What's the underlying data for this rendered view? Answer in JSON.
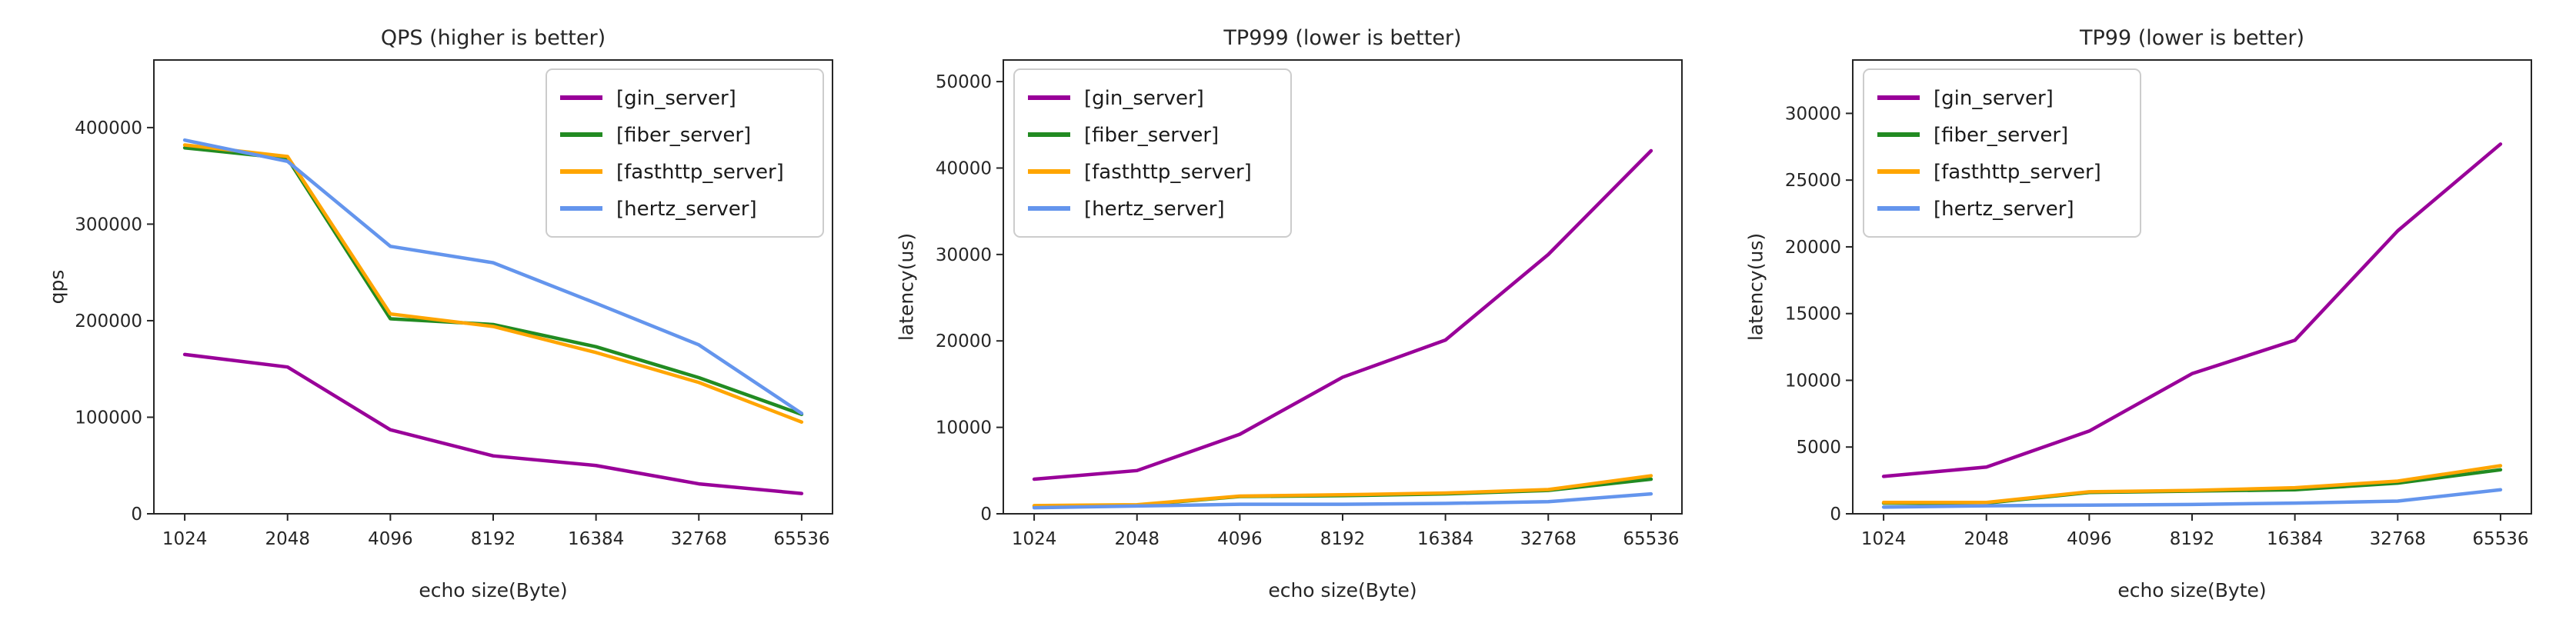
{
  "figure": {
    "background": "#ffffff",
    "axis_color": "#262626",
    "legend_border_color": "#cccccc",
    "legend_background": "#ffffff"
  },
  "chart_data": [
    {
      "type": "line",
      "title": "QPS (higher is better)",
      "xlabel": "echo size(Byte)",
      "ylabel": "qps",
      "categories": [
        "1024",
        "2048",
        "4096",
        "8192",
        "16384",
        "32768",
        "65536"
      ],
      "ylim": [
        0,
        470000
      ],
      "yticks": [
        0,
        100000,
        200000,
        300000,
        400000
      ],
      "grid": false,
      "legend_position": "upper-right",
      "series": [
        {
          "key": "gin_server",
          "name": "[gin_server]",
          "color": "#990099",
          "values": [
            165000,
            152000,
            87000,
            60000,
            50000,
            31000,
            21000
          ]
        },
        {
          "key": "fiber_server",
          "name": "[fiber_server]",
          "color": "#228B22",
          "values": [
            379000,
            368000,
            202000,
            196000,
            173000,
            141000,
            103000
          ]
        },
        {
          "key": "fasthttp_server",
          "name": "[fasthttp_server]",
          "color": "#FFA500",
          "values": [
            382000,
            370000,
            207000,
            194000,
            167000,
            136000,
            95000
          ]
        },
        {
          "key": "hertz_server",
          "name": "[hertz_server]",
          "color": "#6495ED",
          "values": [
            387000,
            365000,
            277000,
            260000,
            218000,
            175000,
            104000
          ]
        }
      ]
    },
    {
      "type": "line",
      "title": "TP999 (lower is better)",
      "xlabel": "echo size(Byte)",
      "ylabel": "latency(us)",
      "categories": [
        "1024",
        "2048",
        "4096",
        "8192",
        "16384",
        "32768",
        "65536"
      ],
      "ylim": [
        0,
        52500
      ],
      "yticks": [
        0,
        10000,
        20000,
        30000,
        40000,
        50000
      ],
      "grid": false,
      "legend_position": "upper-left",
      "series": [
        {
          "key": "gin_server",
          "name": "[gin_server]",
          "color": "#990099",
          "values": [
            4000,
            5000,
            9200,
            15800,
            20100,
            30000,
            42000
          ]
        },
        {
          "key": "fiber_server",
          "name": "[fiber_server]",
          "color": "#228B22",
          "values": [
            900,
            1000,
            2000,
            2100,
            2300,
            2700,
            4000
          ]
        },
        {
          "key": "fasthttp_server",
          "name": "[fasthttp_server]",
          "color": "#FFA500",
          "values": [
            950,
            1050,
            2050,
            2200,
            2400,
            2800,
            4400
          ]
        },
        {
          "key": "hertz_server",
          "name": "[hertz_server]",
          "color": "#6495ED",
          "values": [
            700,
            900,
            1100,
            1100,
            1200,
            1400,
            2300
          ]
        }
      ]
    },
    {
      "type": "line",
      "title": "TP99 (lower is better)",
      "xlabel": "echo size(Byte)",
      "ylabel": "latency(us)",
      "categories": [
        "1024",
        "2048",
        "4096",
        "8192",
        "16384",
        "32768",
        "65536"
      ],
      "ylim": [
        0,
        34000
      ],
      "yticks": [
        0,
        5000,
        10000,
        15000,
        20000,
        25000,
        30000
      ],
      "grid": false,
      "legend_position": "upper-left",
      "series": [
        {
          "key": "gin_server",
          "name": "[gin_server]",
          "color": "#990099",
          "values": [
            2800,
            3500,
            6200,
            10500,
            13000,
            21200,
            27700
          ]
        },
        {
          "key": "fiber_server",
          "name": "[fiber_server]",
          "color": "#228B22",
          "values": [
            800,
            800,
            1600,
            1700,
            1800,
            2300,
            3300
          ]
        },
        {
          "key": "fasthttp_server",
          "name": "[fasthttp_server]",
          "color": "#FFA500",
          "values": [
            850,
            850,
            1650,
            1750,
            1950,
            2450,
            3600
          ]
        },
        {
          "key": "hertz_server",
          "name": "[hertz_server]",
          "color": "#6495ED",
          "values": [
            500,
            600,
            650,
            700,
            800,
            950,
            1800
          ]
        }
      ]
    }
  ]
}
